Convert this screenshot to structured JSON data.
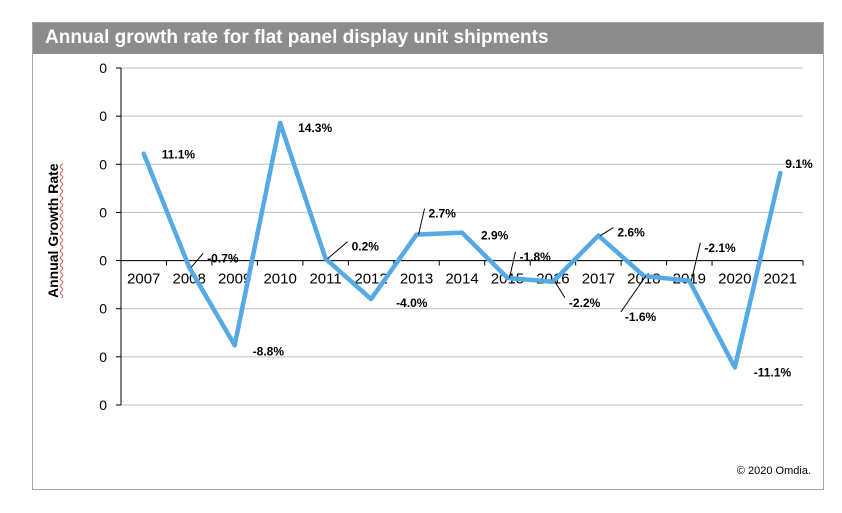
{
  "chart_data": {
    "type": "line",
    "title": "Annual growth rate for flat panel display unit shipments",
    "ylabel": "Annual Growth Rate",
    "xlabel": "",
    "categories": [
      "2007",
      "2008",
      "2009",
      "2010",
      "2011",
      "2012",
      "2013",
      "2014",
      "2015",
      "2016",
      "2017",
      "2018",
      "2019",
      "2020",
      "2021"
    ],
    "series": [
      {
        "values": [
          0.111,
          -0.007,
          -0.088,
          0.143,
          0.002,
          -0.04,
          0.027,
          0.029,
          -0.018,
          -0.022,
          0.026,
          -0.016,
          -0.021,
          -0.111,
          0.091
        ],
        "labels": [
          "11.1%",
          "-0.7%",
          "-8.8%",
          "14.3%",
          "0.2%",
          "-4.0%",
          "2.7%",
          "2.9%",
          "-1.8%",
          "-2.2%",
          "2.6%",
          "-1.6%",
          "-2.1%",
          "-11.1%",
          "9.1%"
        ]
      }
    ],
    "ytick_labels": [
      "0",
      "0",
      "0",
      "0",
      "0",
      "0",
      "0",
      "0"
    ],
    "ylim": [
      -0.15,
      0.2
    ],
    "grid": true,
    "line_color": "#55aae6"
  },
  "copyright": "© 2020 Omdia."
}
